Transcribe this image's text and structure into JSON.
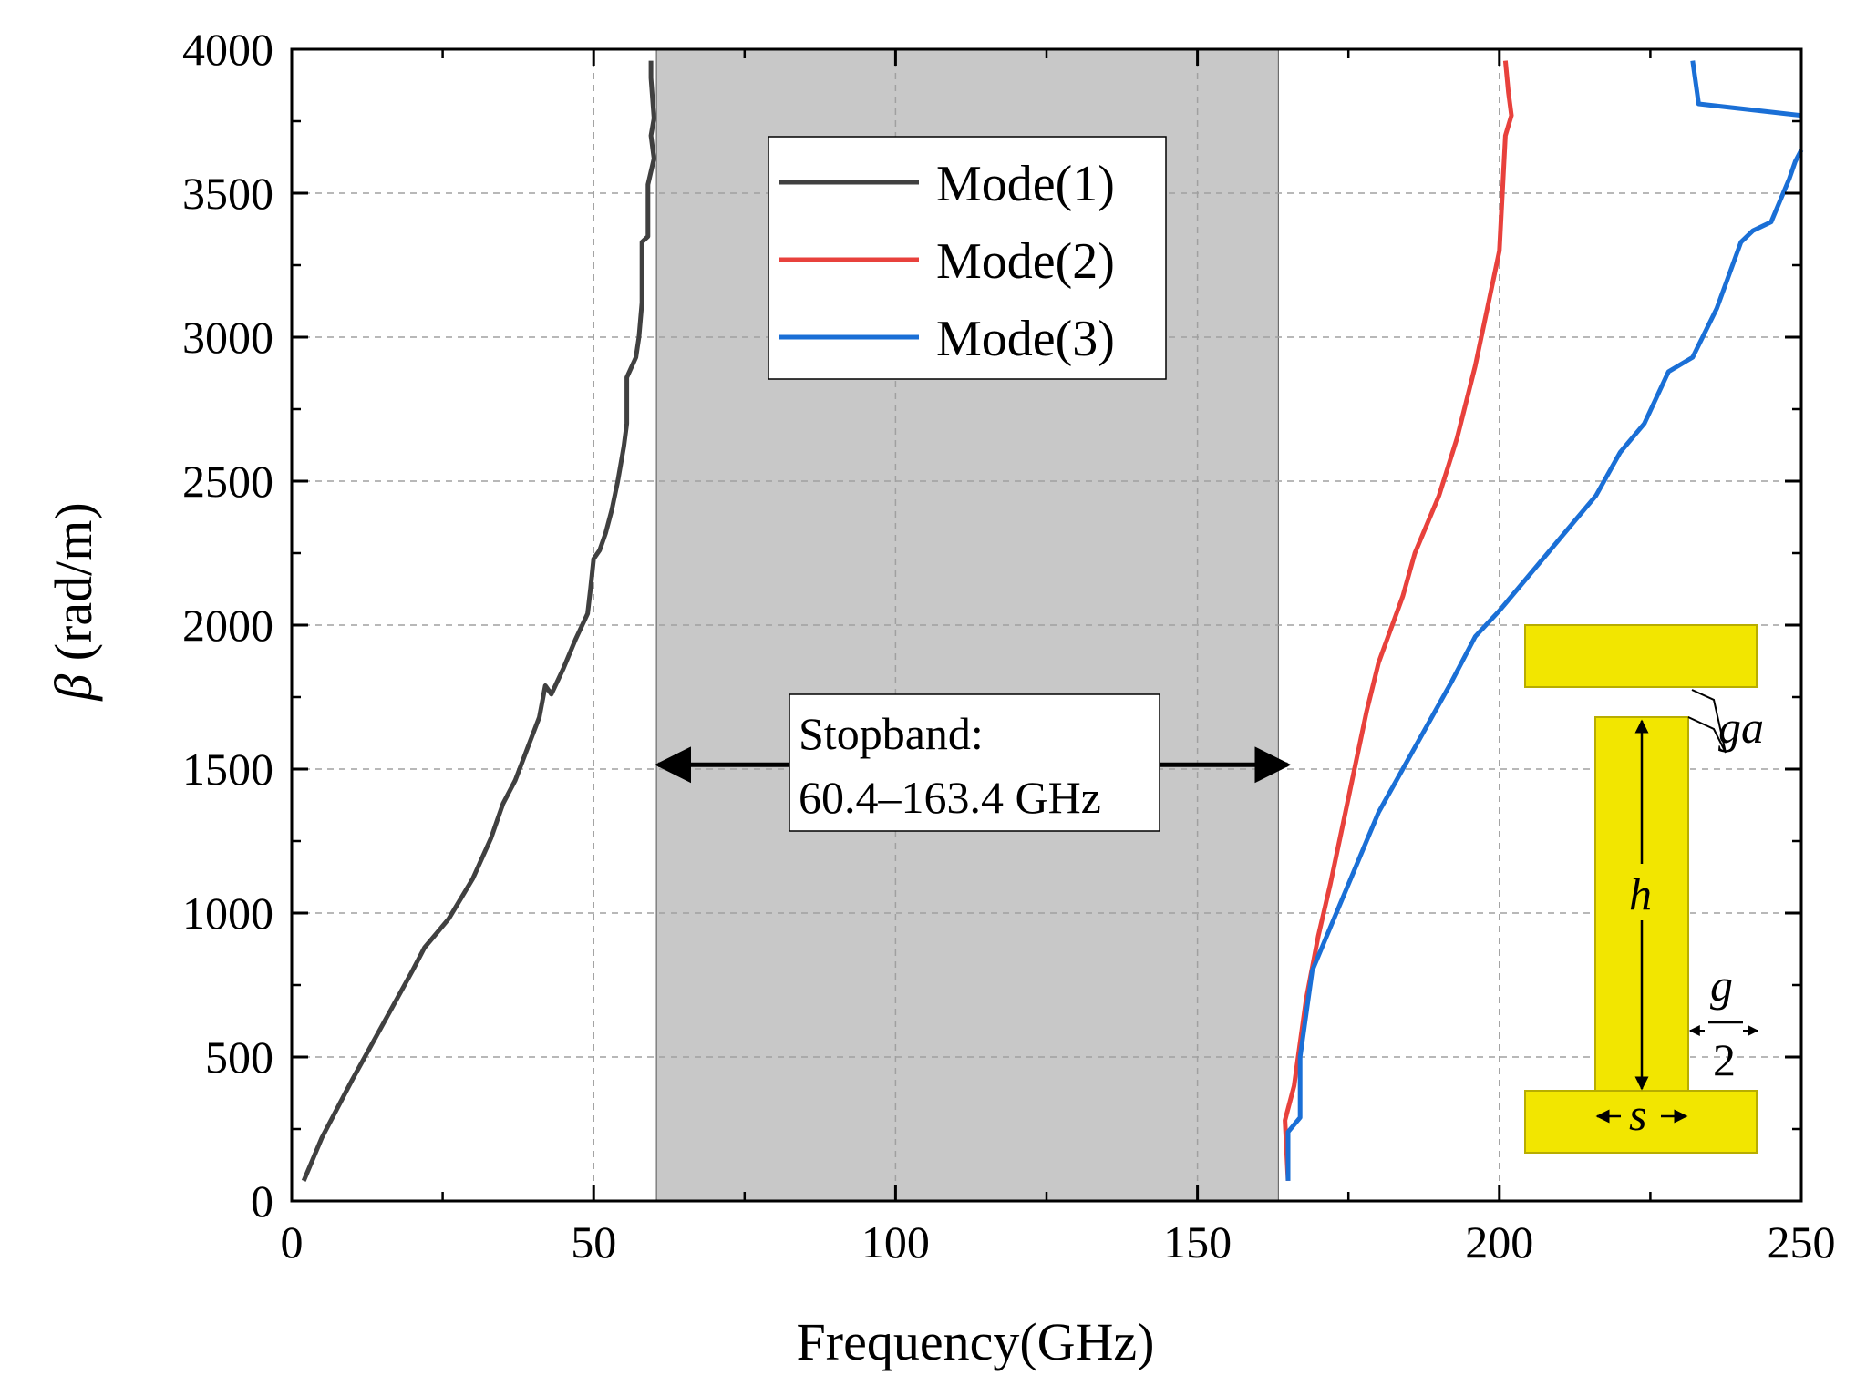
{
  "chart_data": {
    "type": "line",
    "title": "",
    "xlabel": "Frequency(GHz)",
    "ylabel_symbol": "β",
    "ylabel_unit": " (rad/m)",
    "xlim": [
      0,
      250
    ],
    "ylim": [
      0,
      4000
    ],
    "xticks": [
      0,
      50,
      100,
      150,
      200,
      250
    ],
    "yticks": [
      0,
      500,
      1000,
      1500,
      2000,
      2500,
      3000,
      3500,
      4000
    ],
    "grid": true,
    "legend_position": "top-center",
    "stopband": {
      "x_start": 60.4,
      "x_end": 163.4,
      "label_line1": "Stopband:",
      "label_line2": "60.4–163.4 GHz"
    },
    "series": [
      {
        "name": "Mode(1)",
        "color": "#404040",
        "x": [
          2,
          5,
          10,
          15,
          20,
          22,
          24,
          26,
          28,
          30,
          33,
          35,
          37,
          39,
          41,
          42,
          43,
          45,
          47,
          49,
          49.5,
          50,
          51,
          52,
          53,
          54,
          55,
          55.5,
          55.5,
          57,
          57.5,
          58,
          58,
          59,
          59,
          60,
          59.5,
          60,
          59.5,
          59.5
        ],
        "y": [
          70,
          220,
          420,
          610,
          800,
          880,
          930,
          980,
          1050,
          1120,
          1260,
          1380,
          1460,
          1570,
          1680,
          1790,
          1760,
          1850,
          1950,
          2040,
          2130,
          2230,
          2260,
          2320,
          2400,
          2500,
          2620,
          2700,
          2860,
          2930,
          3000,
          3120,
          3330,
          3350,
          3530,
          3620,
          3700,
          3760,
          3900,
          3960
        ]
      },
      {
        "name": "Mode(2)",
        "color": "#e8413c",
        "x": [
          165,
          164.5,
          166,
          167,
          168,
          170,
          172,
          174,
          176,
          178,
          180,
          184,
          186,
          190,
          193,
          196,
          198,
          200,
          200.5,
          201,
          202,
          201.5,
          201
        ],
        "y": [
          70,
          280,
          400,
          550,
          700,
          920,
          1100,
          1300,
          1500,
          1700,
          1870,
          2100,
          2250,
          2450,
          2650,
          2900,
          3100,
          3300,
          3500,
          3700,
          3770,
          3850,
          3960
        ]
      },
      {
        "name": "Mode(3)",
        "color": "#1a6fd6",
        "x": [
          165,
          165,
          167,
          167,
          169,
          172,
          176,
          180,
          184,
          188,
          192,
          196,
          200,
          204,
          208,
          212,
          216,
          220,
          224,
          228,
          232,
          236,
          240,
          242,
          245,
          248,
          249,
          250
        ],
        "y": [
          70,
          240,
          290,
          500,
          800,
          950,
          1150,
          1350,
          1500,
          1650,
          1800,
          1960,
          2050,
          2150,
          2250,
          2350,
          2450,
          2600,
          2700,
          2880,
          2930,
          3100,
          3330,
          3370,
          3400,
          3550,
          3610,
          3650
        ]
      },
      {
        "name": "Mode(3) upper branch",
        "color": "#1a6fd6",
        "in_legend": false,
        "x": [
          232,
          233,
          250
        ],
        "y": [
          3960,
          3810,
          3770
        ]
      }
    ],
    "inset": {
      "labels": {
        "ga": "ga",
        "h": "h",
        "g": "g",
        "two": "2",
        "s": "s"
      },
      "fill_color": "#f2e600",
      "edge_color": "#b8ad00"
    }
  }
}
